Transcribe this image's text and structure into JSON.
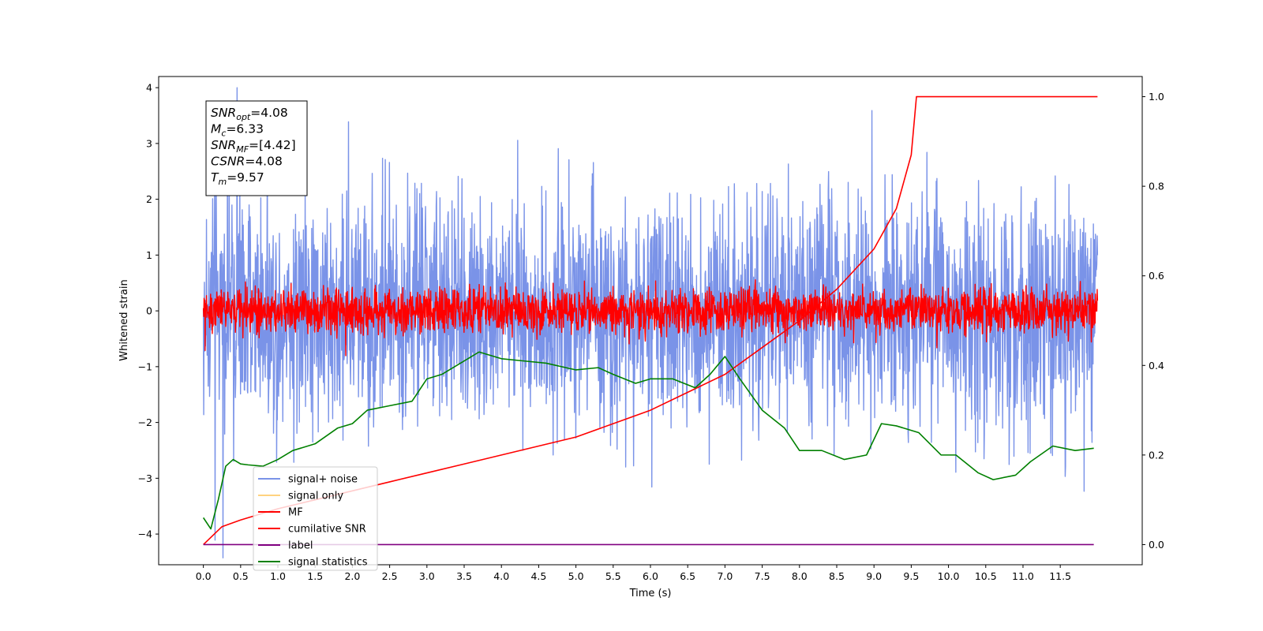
{
  "chart_data": {
    "type": "line",
    "xlabel": "Time (s)",
    "ylabel": "Whitened strain",
    "xlim": [
      -0.6,
      12.6
    ],
    "ylim": [
      -4.55,
      4.2
    ],
    "y2lim": [
      -0.045,
      1.045
    ],
    "x_ticks": [
      "0.0",
      "0.5",
      "1.0",
      "1.5",
      "2.0",
      "2.5",
      "3.0",
      "3.5",
      "4.0",
      "4.5",
      "5.0",
      "5.5",
      "6.0",
      "6.5",
      "7.0",
      "7.5",
      "8.0",
      "8.5",
      "9.0",
      "9.5",
      "10.0",
      "10.5",
      "11.0",
      "11.5"
    ],
    "y_ticks": [
      "4",
      "3",
      "2",
      "1",
      "0",
      "−1",
      "−2",
      "−3",
      "−4"
    ],
    "y2_ticks": [
      "0.0",
      "0.2",
      "0.4",
      "0.6",
      "0.8",
      "1.0"
    ],
    "annotation": {
      "lines": [
        {
          "main": "SNR",
          "sub": "opt",
          "value": "=4.08"
        },
        {
          "main": "M",
          "sub": "c",
          "value": "=6.33"
        },
        {
          "main": "SNR",
          "sub": "MF",
          "value": "=[4.42]"
        },
        {
          "main": "CSNR",
          "sub": "",
          "value": "=4.08"
        },
        {
          "main": "T",
          "sub": "m",
          "value": "=9.57"
        }
      ]
    },
    "legend": {
      "placement": "lower-left",
      "entries": [
        {
          "label": "signal+ noise",
          "color": "#7a93e8"
        },
        {
          "label": "signal only",
          "color": "#ffd27f"
        },
        {
          "label": "MF",
          "color": "#ff0000"
        },
        {
          "label": "cumilative SNR",
          "color": "#ff0000"
        },
        {
          "label": "label",
          "color": "#800080"
        },
        {
          "label": "signal statistics",
          "color": "#008000"
        }
      ]
    },
    "series": [
      {
        "name": "signal+ noise",
        "axis": "left",
        "color": "#7a93e8",
        "kind": "noise",
        "x_range": [
          0,
          12
        ],
        "std": 1.05
      },
      {
        "name": "MF",
        "axis": "left",
        "color": "#ff0000",
        "kind": "noise",
        "x_range": [
          0,
          12
        ],
        "std": 0.2
      },
      {
        "name": "cumilative SNR",
        "axis": "right",
        "color": "#ff0000",
        "x": [
          0,
          0.25,
          0.5,
          1,
          1.5,
          2,
          2.5,
          3,
          3.5,
          4,
          4.5,
          5,
          5.5,
          6,
          6.5,
          7,
          7.5,
          8,
          8.5,
          9,
          9.3,
          9.5,
          9.57,
          12
        ],
        "y": [
          0,
          0.04,
          0.055,
          0.08,
          0.1,
          0.12,
          0.14,
          0.16,
          0.18,
          0.2,
          0.22,
          0.24,
          0.27,
          0.3,
          0.34,
          0.38,
          0.44,
          0.5,
          0.57,
          0.66,
          0.75,
          0.87,
          1.0,
          1.0
        ]
      },
      {
        "name": "label",
        "axis": "right",
        "color": "#800080",
        "x": [
          0,
          11.95
        ],
        "y": [
          0.0,
          0.0
        ]
      },
      {
        "name": "signal statistics",
        "axis": "right",
        "color": "#008000",
        "x": [
          0,
          0.1,
          0.2,
          0.3,
          0.4,
          0.5,
          0.6,
          0.8,
          1.0,
          1.2,
          1.5,
          1.8,
          2.0,
          2.2,
          2.5,
          2.8,
          3.0,
          3.2,
          3.4,
          3.7,
          4.0,
          4.3,
          4.6,
          5.0,
          5.3,
          5.5,
          5.8,
          6.0,
          6.3,
          6.6,
          6.8,
          7.0,
          7.2,
          7.5,
          7.8,
          8.0,
          8.3,
          8.6,
          8.9,
          9.1,
          9.3,
          9.6,
          9.9,
          10.1,
          10.4,
          10.6,
          10.9,
          11.1,
          11.4,
          11.7,
          11.95
        ],
        "y": [
          0.06,
          0.035,
          0.1,
          0.175,
          0.19,
          0.18,
          0.178,
          0.175,
          0.19,
          0.21,
          0.225,
          0.26,
          0.27,
          0.3,
          0.31,
          0.32,
          0.37,
          0.38,
          0.4,
          0.43,
          0.415,
          0.41,
          0.405,
          0.39,
          0.395,
          0.38,
          0.36,
          0.37,
          0.37,
          0.35,
          0.38,
          0.42,
          0.37,
          0.3,
          0.26,
          0.21,
          0.21,
          0.19,
          0.2,
          0.27,
          0.265,
          0.25,
          0.2,
          0.2,
          0.16,
          0.145,
          0.155,
          0.185,
          0.22,
          0.21,
          0.215
        ]
      }
    ]
  }
}
